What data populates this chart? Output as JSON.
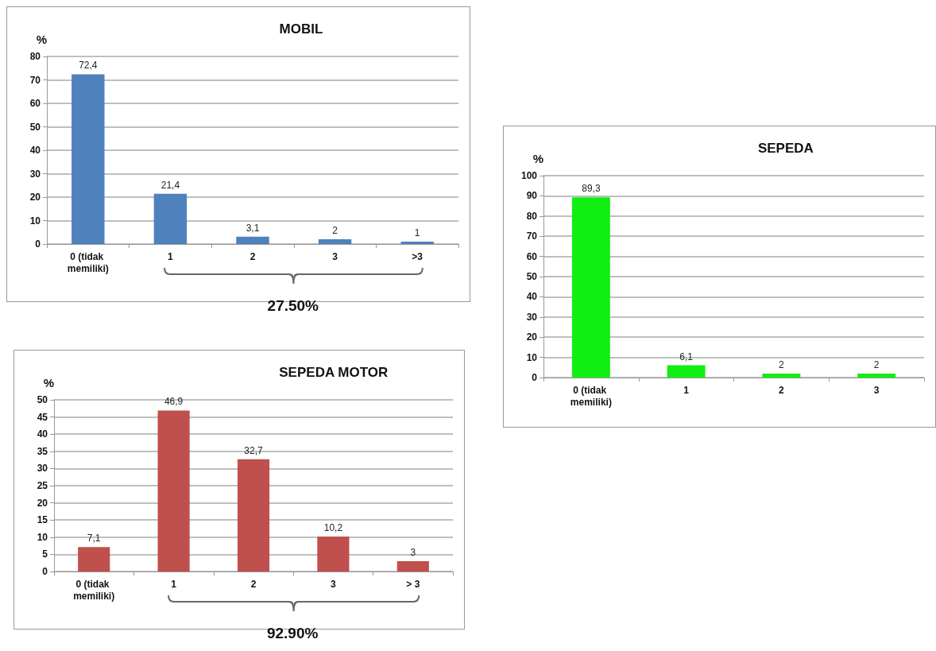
{
  "chart_data": [
    {
      "type": "bar",
      "title": "MOBIL",
      "ylabel": "%",
      "categories": [
        "0 (tidak memiliki)",
        "1",
        "2",
        "3",
        ">3"
      ],
      "values": [
        72.4,
        21.4,
        3.1,
        2,
        1
      ],
      "value_labels": [
        "72,4",
        "21,4",
        "3,1",
        "2",
        "1"
      ],
      "color": "#4f81bd",
      "ylim": [
        0,
        80
      ],
      "yticks": [
        0,
        10,
        20,
        30,
        40,
        50,
        60,
        70,
        80
      ],
      "grid": "y",
      "annotations": [
        "27.50%"
      ]
    },
    {
      "type": "bar",
      "title": "SEPEDA",
      "ylabel": "%",
      "categories": [
        "0 (tidak memiliki)",
        "1",
        "2",
        "3"
      ],
      "values": [
        89.3,
        6.1,
        2,
        2
      ],
      "value_labels": [
        "89,3",
        "6,1",
        "2",
        "2"
      ],
      "color": "#11ee11",
      "ylim": [
        0,
        100
      ],
      "yticks": [
        0,
        10,
        20,
        30,
        40,
        50,
        60,
        70,
        80,
        90,
        100
      ],
      "grid": "y"
    },
    {
      "type": "bar",
      "title": "SEPEDA MOTOR",
      "ylabel": "%",
      "categories": [
        "0 (tidak memiliki)",
        "1",
        "2",
        "3",
        "> 3"
      ],
      "values": [
        7.1,
        46.9,
        32.7,
        10.2,
        3
      ],
      "value_labels": [
        "7,1",
        "46,9",
        "32,7",
        "10,2",
        "3"
      ],
      "color": "#c0504d",
      "ylim": [
        0,
        50
      ],
      "yticks": [
        0,
        5,
        10,
        15,
        20,
        25,
        30,
        35,
        40,
        45,
        50
      ],
      "grid": "y",
      "annotations": [
        "92.90%"
      ]
    }
  ]
}
